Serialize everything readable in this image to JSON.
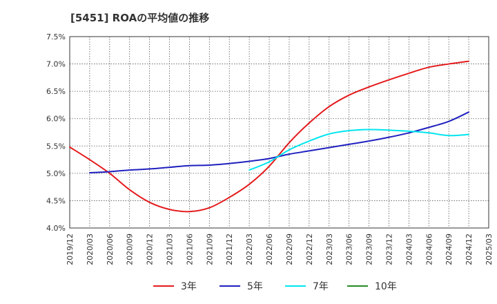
{
  "chart_data": {
    "type": "line",
    "title": "[5451]  ROAの平均値の推移",
    "xlabel": "",
    "ylabel": "",
    "x_ticks": [
      "2019/12",
      "2020/03",
      "2020/06",
      "2020/09",
      "2020/12",
      "2021/03",
      "2021/06",
      "2021/09",
      "2021/12",
      "2022/03",
      "2022/06",
      "2022/09",
      "2022/12",
      "2023/03",
      "2023/06",
      "2023/09",
      "2023/12",
      "2024/03",
      "2024/06",
      "2024/09",
      "2024/12",
      "2025/03"
    ],
    "y_ticks": [
      "4.0%",
      "4.5%",
      "5.0%",
      "5.5%",
      "6.0%",
      "6.5%",
      "7.0%",
      "7.5%"
    ],
    "ylim": [
      4.0,
      7.5
    ],
    "grid": true,
    "legend_position": "bottom",
    "series": [
      {
        "name": "3年",
        "color": "#e41a1c",
        "x": [
          "2019/12",
          "2020/03",
          "2020/06",
          "2020/09",
          "2020/12",
          "2021/03",
          "2021/06",
          "2021/09",
          "2021/12",
          "2022/03",
          "2022/06",
          "2022/09",
          "2022/12",
          "2023/03",
          "2023/06",
          "2023/09",
          "2023/12",
          "2024/03",
          "2024/06",
          "2024/09",
          "2024/12"
        ],
        "values": [
          5.48,
          5.25,
          5.0,
          4.7,
          4.47,
          4.34,
          4.3,
          4.37,
          4.56,
          4.8,
          5.13,
          5.56,
          5.92,
          6.22,
          6.43,
          6.58,
          6.71,
          6.83,
          6.94,
          7.0,
          7.05
        ]
      },
      {
        "name": "5年",
        "color": "#1f1fbf",
        "x": [
          "2020/03",
          "2020/06",
          "2020/09",
          "2020/12",
          "2021/03",
          "2021/06",
          "2021/09",
          "2021/12",
          "2022/03",
          "2022/06",
          "2022/09",
          "2022/12",
          "2023/03",
          "2023/06",
          "2023/09",
          "2023/12",
          "2024/03",
          "2024/06",
          "2024/09",
          "2024/12"
        ],
        "values": [
          5.01,
          5.03,
          5.06,
          5.08,
          5.11,
          5.14,
          5.15,
          5.18,
          5.22,
          5.27,
          5.35,
          5.41,
          5.47,
          5.53,
          5.59,
          5.66,
          5.74,
          5.84,
          5.95,
          6.12
        ]
      },
      {
        "name": "7年",
        "color": "#00e5ee",
        "x": [
          "2022/03",
          "2022/06",
          "2022/09",
          "2022/12",
          "2023/03",
          "2023/06",
          "2023/09",
          "2023/12",
          "2024/03",
          "2024/06",
          "2024/09",
          "2024/12"
        ],
        "values": [
          5.06,
          5.21,
          5.43,
          5.59,
          5.72,
          5.78,
          5.8,
          5.79,
          5.77,
          5.74,
          5.69,
          5.71
        ]
      },
      {
        "name": "10年",
        "color": "#228b22",
        "x": [],
        "values": []
      }
    ]
  }
}
